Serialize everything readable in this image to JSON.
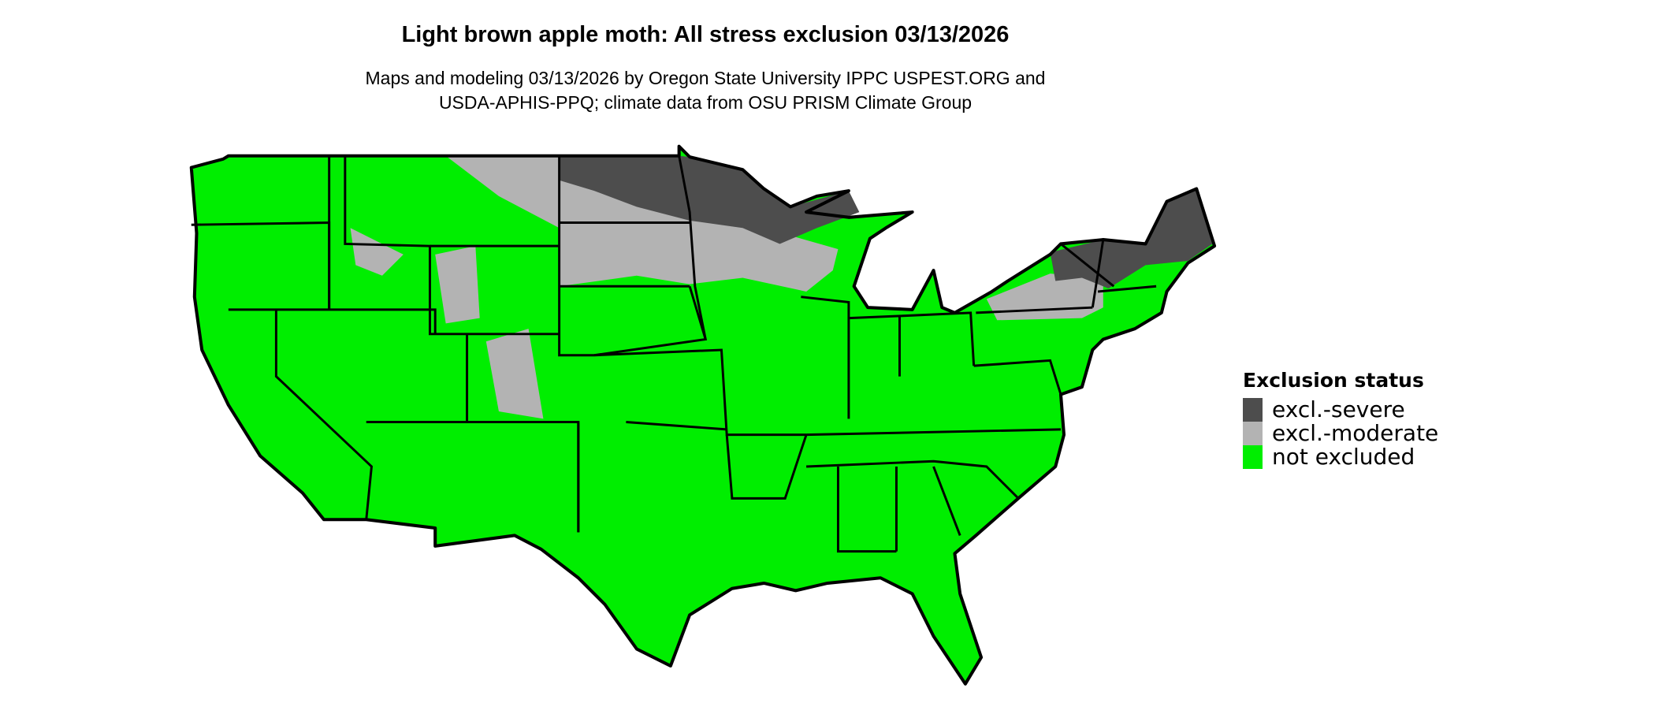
{
  "title": "Light brown apple moth: All stress exclusion 03/13/2026",
  "subtitle": {
    "line1": "Maps and modeling 03/13/2026 by Oregon State University IPPC USPEST.ORG and",
    "line2": "USDA-APHIS-PPQ; climate data from OSU PRISM Climate Group"
  },
  "legend": {
    "title": "Exclusion status",
    "items": [
      {
        "label": "excl.-severe",
        "color": "#4d4d4d"
      },
      {
        "label": "excl.-moderate",
        "color": "#b3b3b3"
      },
      {
        "label": "not excluded",
        "color": "#00ee00"
      }
    ]
  }
}
